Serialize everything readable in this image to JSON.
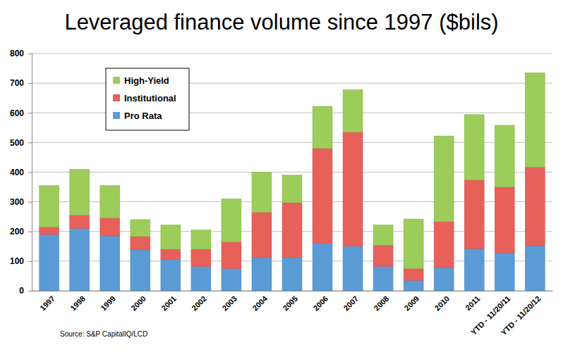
{
  "chart_data": {
    "type": "bar",
    "title": "Leveraged finance volume since 1997 ($bils)",
    "categories": [
      "1997",
      "1998",
      "1999",
      "2000",
      "2001",
      "2002",
      "2003",
      "2004",
      "2005",
      "2006",
      "2007",
      "2008",
      "2009",
      "2010",
      "2011",
      "YTD - 11/20/11",
      "YTD - 11/20/12"
    ],
    "series": [
      {
        "name": "Pro Rata",
        "color": "#5b9bd5",
        "values": [
          190,
          210,
          185,
          138,
          105,
          82,
          75,
          112,
          112,
          160,
          150,
          82,
          35,
          78,
          142,
          128,
          152
        ]
      },
      {
        "name": "Institutional",
        "color": "#e8605a",
        "values": [
          25,
          45,
          60,
          45,
          35,
          58,
          90,
          153,
          185,
          320,
          385,
          72,
          40,
          155,
          232,
          222,
          265
        ]
      },
      {
        "name": "High-Yield",
        "color": "#9ccc5a",
        "values": [
          140,
          155,
          110,
          57,
          82,
          65,
          145,
          135,
          93,
          142,
          143,
          68,
          167,
          289,
          220,
          208,
          318
        ]
      }
    ],
    "stacked": true,
    "ylim": [
      0,
      800
    ],
    "yticks": [
      0,
      100,
      200,
      300,
      400,
      500,
      600,
      700,
      800
    ],
    "grid": true,
    "legend": "upper left",
    "annotations": [
      "Source: S&P CapitalIQ/LCD"
    ]
  }
}
